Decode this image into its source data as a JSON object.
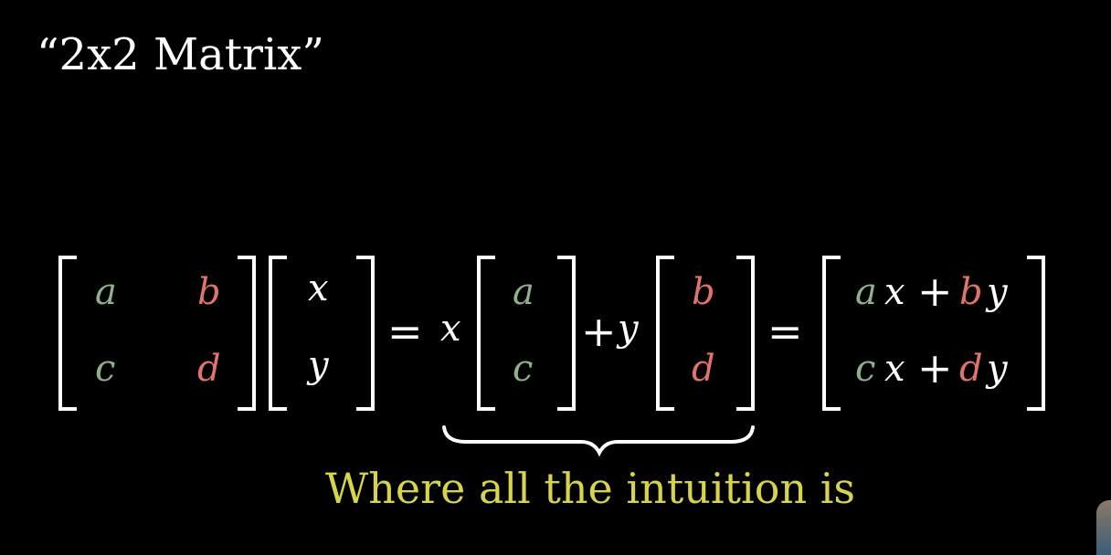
{
  "title": "“2x2 Matrix”",
  "equation": {
    "matrix": {
      "a": "a",
      "b": "b",
      "c": "c",
      "d": "d"
    },
    "vector": {
      "x": "x",
      "y": "y"
    },
    "equals": "=",
    "plus": "+",
    "scalar_x": "x",
    "scalar_y": "y",
    "col1": {
      "top": "a",
      "bottom": "c"
    },
    "col2": {
      "top": "b",
      "bottom": "d"
    },
    "result": {
      "row1": {
        "a": "a",
        "x": "x",
        "plus": "+",
        "b": "b",
        "y": "y"
      },
      "row2": {
        "c": "c",
        "x": "x",
        "plus": "+",
        "d": "d",
        "y": "y"
      }
    }
  },
  "caption": "Where all the intuition is",
  "colors": {
    "background": "#000000",
    "green": "#8fb28a",
    "red": "#e0736a",
    "caption_yellow": "#d7d44a",
    "white": "#ffffff"
  }
}
